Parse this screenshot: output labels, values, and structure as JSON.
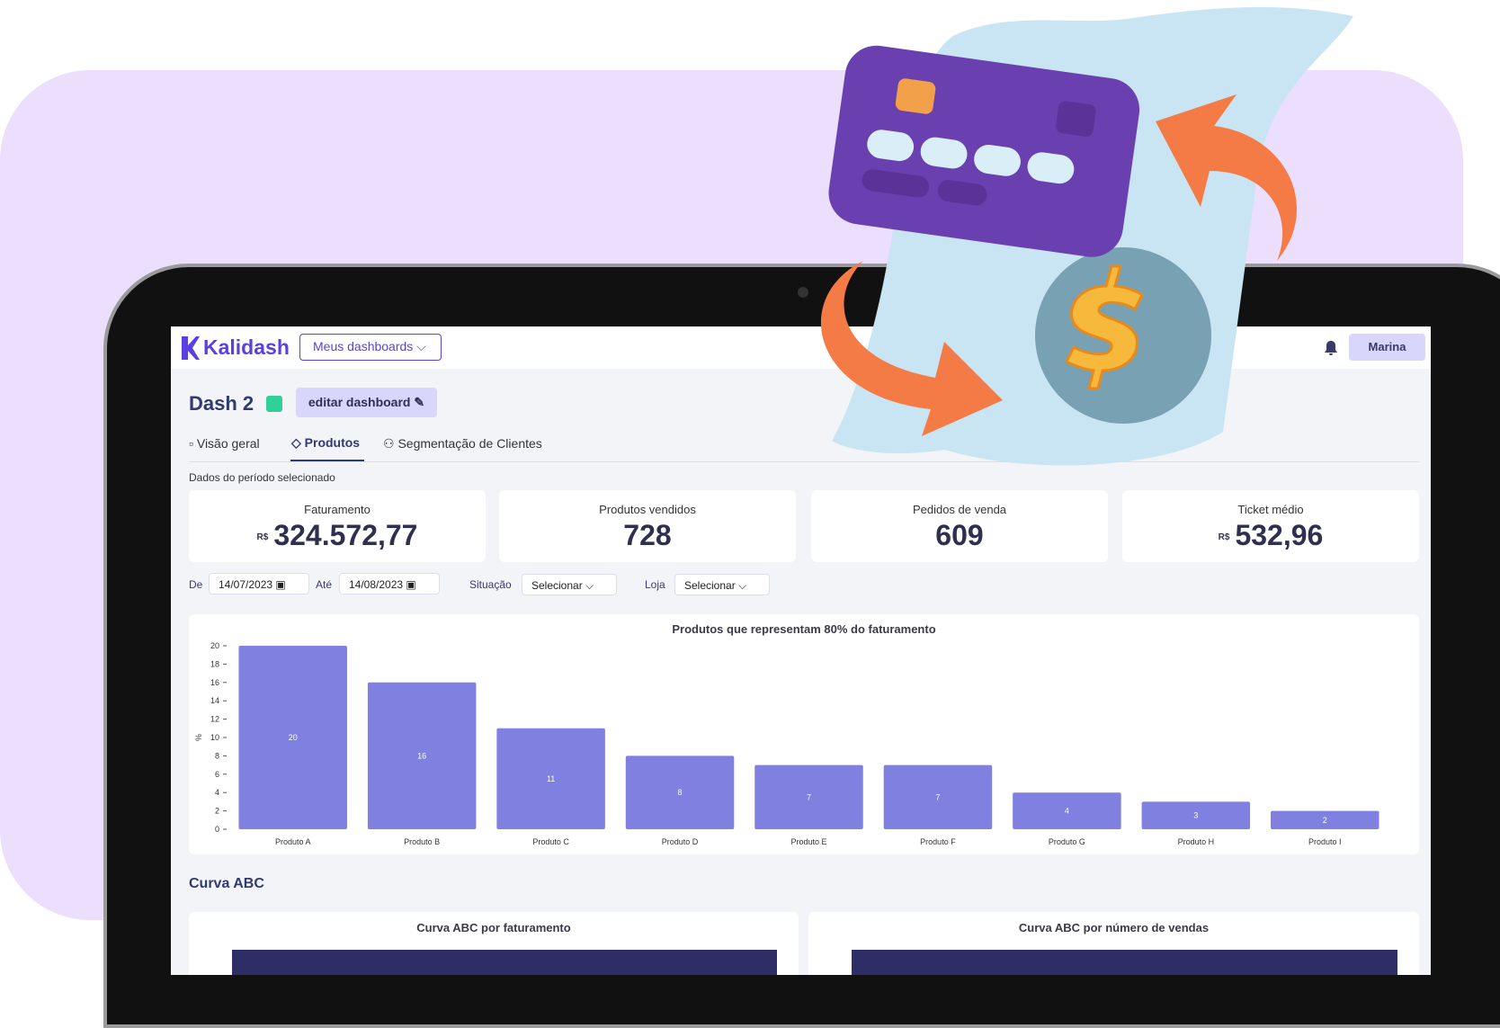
{
  "header": {
    "brand": "Kalidash",
    "dashboards_menu": "Meus dashboards",
    "user": "Marina"
  },
  "dashboard": {
    "title": "Dash 2",
    "edit_button": "editar dashboard"
  },
  "tabs": [
    "Visão geral",
    "Produtos",
    "Segmentação de Clientes"
  ],
  "period_note": "Dados do período selecionado",
  "kpis": [
    {
      "label": "Faturamento",
      "currency": "R$",
      "value": "324.572,77"
    },
    {
      "label": "Produtos vendidos",
      "value": "728"
    },
    {
      "label": "Pedidos de venda",
      "value": "609"
    },
    {
      "label": "Ticket médio",
      "currency": "R$",
      "value": "532,96"
    }
  ],
  "filters": {
    "from_label": "De",
    "from_date": "14/07/2023",
    "to_label": "Até",
    "to_date": "14/08/2023",
    "status_label": "Situação",
    "status_value": "Selecionar",
    "store_label": "Loja",
    "store_value": "Selecionar"
  },
  "chart_data": {
    "type": "bar",
    "title": "Produtos que representam 80% do faturamento",
    "y_label": "%",
    "categories": [
      "Produto A",
      "Produto B",
      "Produto C",
      "Produto D",
      "Produto E",
      "Produto F",
      "Produto G",
      "Produto H",
      "Produto I"
    ],
    "values": [
      20,
      16,
      11,
      8,
      7,
      7,
      4,
      3,
      2
    ],
    "color": "#8080e0",
    "ylim": [
      0,
      20
    ],
    "yticks": [
      0,
      2,
      4,
      6,
      8,
      10,
      12,
      14,
      16,
      18,
      20
    ]
  },
  "abc": {
    "title": "Curva ABC",
    "charts": [
      "Curva ABC por faturamento",
      "Curva ABC por número de vendas"
    ]
  }
}
